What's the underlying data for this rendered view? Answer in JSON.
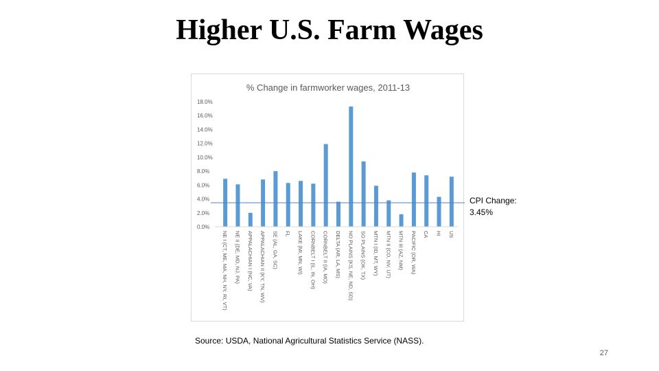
{
  "slide": {
    "title": "Higher U.S. Farm Wages",
    "source": "Source: USDA, National Agricultural Statistics Service (NASS).",
    "page_number": "27"
  },
  "annotation": {
    "line1": "CPI Change:",
    "line2": "3.45%"
  },
  "chart_data": {
    "type": "bar",
    "title": "% Change in farmworker wages, 2011-13",
    "xlabel": "",
    "ylabel": "",
    "ylim": [
      0,
      18
    ],
    "yticks": [
      "0.0%",
      "2.0%",
      "4.0%",
      "6.0%",
      "8.0%",
      "10.0%",
      "12.0%",
      "14.0%",
      "16.0%",
      "18.0%"
    ],
    "grid": false,
    "categories": [
      "NE I (CT, ME, MA, NH, NY, RI, VT)",
      "NE II (DE, MD, NJ, PA)",
      "APPALACHIAN I (NC, VA)",
      "APPALACHIAN II (KY, TN, WV)",
      "SE (AL, GA, SC)",
      "FL",
      "LAKE (MI, MN, WI)",
      "CORNBELT I (IL, IN, OH)",
      "CORNBELT II (IA, MO)",
      "DELTA (AR, LA, MS)",
      "NO PLAINS (KS, NE, ND, SD)",
      "SO PLAINS (OK, TX)",
      "MTN I (ID, MT, WY)",
      "MTN II (CO, NV, UT)",
      "MTN III (AZ, NM)",
      "PACIFIC (OR, WA)",
      "CA",
      "HI",
      "US"
    ],
    "values": [
      6.9,
      6.1,
      2.0,
      6.8,
      8.0,
      6.3,
      6.6,
      6.2,
      11.9,
      3.6,
      17.3,
      9.4,
      5.9,
      3.8,
      1.8,
      7.8,
      7.4,
      4.3,
      7.2
    ],
    "reference_line": {
      "value": 3.45
    },
    "colors": {
      "bar": "#5b9bd5",
      "reference_line": "#4f81bd",
      "tick_text": "#595959",
      "title_text": "#595959"
    }
  }
}
